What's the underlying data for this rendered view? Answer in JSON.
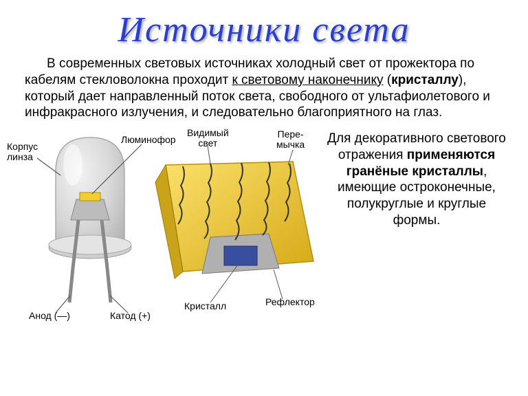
{
  "title": {
    "text": "Источники света",
    "color": "#2a3ecf",
    "fontsize": 52
  },
  "paragraph1": {
    "text_before_underline": "В современных световых источниках холодный свет от прожектора по кабелям стекловолокна проходит  ",
    "underlined": "к световому наконечнику",
    "after_underline_before_bold": " (",
    "bold_word": "кристаллу",
    "after_bold": "), который дает направленный поток света, свободного от ультафиолетового и инфракрасного излучения, и следовательно благоприятного на глаз.",
    "color": "#000000",
    "fontsize": 19
  },
  "paragraph2": {
    "before_bold": "Для декоративного светового отражения ",
    "bold": "применяются гранёные кристаллы",
    "after_bold": ", имеющие остроконечные, полукруглые и круглые формы.",
    "fontsize": 19
  },
  "diagram": {
    "type": "infographic",
    "background_color": "#ffffff",
    "bulb_glass_color": "#d8d8d8",
    "bulb_highlight": "#eeeeee",
    "phosphor_color": "#f4cc2e",
    "phosphor_side": "#c9a41a",
    "crystal_color": "#3a4ea0",
    "reflector_color": "#888888",
    "lead_line_color": "#555555",
    "labels": {
      "korpus": "Корпус\nлинза",
      "luminofor": "Люминофор",
      "vidimyj": "Видимый\nсвет",
      "peremychka": "Пере-\nмычка",
      "anod": "Анод (—)",
      "katod": "Катод (+)",
      "kristall": "Кристалл",
      "reflektor": "Рефлектор"
    },
    "label_fontsize": 14
  }
}
